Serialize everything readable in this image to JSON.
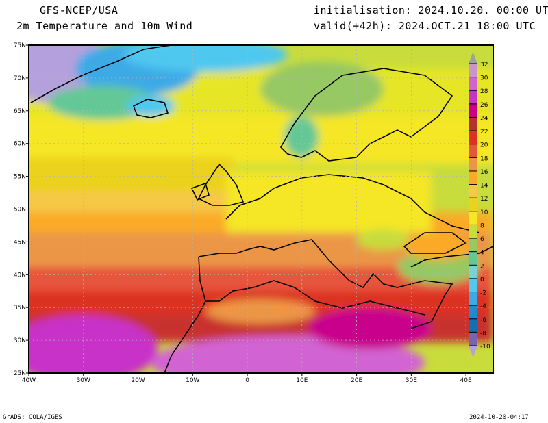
{
  "header": {
    "model": "GFS-NCEP/USA",
    "product": "2m Temperature and 10m Wind",
    "initialisation": "initialisation: 2024.10.20. 00:00 UTC",
    "valid": "valid(+42h): 2024.OCT.21 18:00 UTC"
  },
  "map": {
    "lat_labels": [
      "75N",
      "70N",
      "65N",
      "60N",
      "55N",
      "50N",
      "45N",
      "40N",
      "35N",
      "30N",
      "25N"
    ],
    "lon_labels": [
      "40W",
      "30W",
      "20W",
      "10W",
      "0",
      "10E",
      "20E",
      "30E",
      "40E"
    ],
    "lat_range": [
      25,
      75
    ],
    "lon_range": [
      -40,
      45
    ]
  },
  "colorbar": {
    "labels": [
      "32",
      "30",
      "28",
      "26",
      "24",
      "22",
      "20",
      "18",
      "16",
      "14",
      "12",
      "10",
      "8",
      "6",
      "4",
      "2",
      "0",
      "-2",
      "-4",
      "-6",
      "-8",
      "-10"
    ],
    "over_color": "#a0a0a0",
    "under_color": "#b4a0dc",
    "colors": [
      "#c896c8",
      "#d264d2",
      "#c832c8",
      "#c8008c",
      "#b4322d",
      "#dc3223",
      "#e6553c",
      "#eb9646",
      "#faaa28",
      "#f5c846",
      "#ebd21e",
      "#f5e628",
      "#c8dc3c",
      "#96c864",
      "#64c896",
      "#78d2d2",
      "#50c8f0",
      "#3caae6",
      "#1e8cd2",
      "#146eb4",
      "#7864b4"
    ]
  },
  "footer": {
    "credit": "GrADS: COLA/IGES",
    "timestamp": "2024-10-20-04:17"
  }
}
